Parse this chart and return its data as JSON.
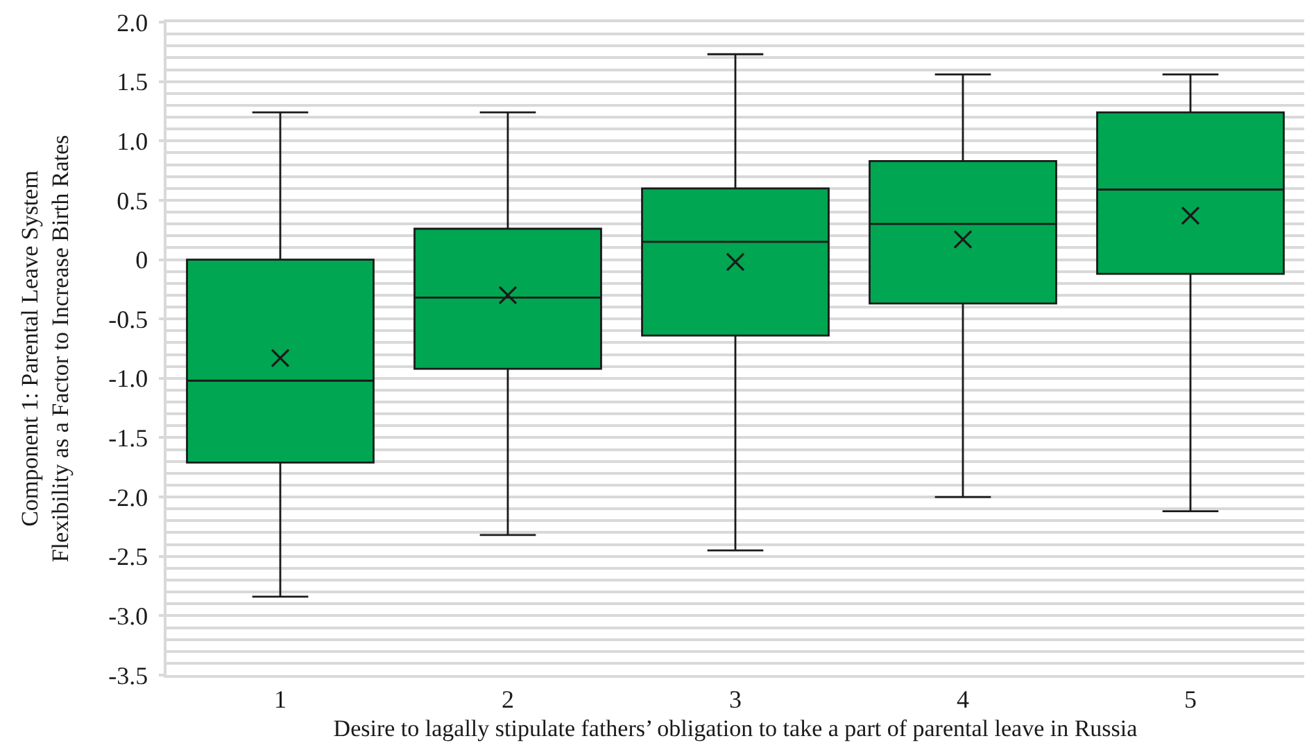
{
  "chart_data": {
    "type": "box",
    "xlabel": "Desire to lagally stipulate fathers’ obligation to take a part of parental leave in Russia",
    "ylabel": "Component 1: Parental Leave System\nFlexibility as a Factor to Increase Birth Rates",
    "categories": [
      "1",
      "2",
      "3",
      "4",
      "5"
    ],
    "series": [
      {
        "color": "#00a651",
        "boxes": [
          {
            "low": -2.84,
            "q1": -1.71,
            "median": -1.02,
            "q3": 0.0,
            "high": 1.24,
            "mean": -0.83
          },
          {
            "low": -2.32,
            "q1": -0.92,
            "median": -0.32,
            "q3": 0.26,
            "high": 1.24,
            "mean": -0.3
          },
          {
            "low": -2.45,
            "q1": -0.64,
            "median": 0.15,
            "q3": 0.6,
            "high": 1.73,
            "mean": -0.02
          },
          {
            "low": -2.0,
            "q1": -0.37,
            "median": 0.3,
            "q3": 0.83,
            "high": 1.56,
            "mean": 0.17
          },
          {
            "low": -2.12,
            "q1": -0.12,
            "median": 0.59,
            "q3": 1.24,
            "high": 1.56,
            "mean": 0.37
          }
        ]
      }
    ],
    "ylim": [
      -3.5,
      2.0
    ],
    "yticks": [
      -3.5,
      {
        "value": -3.4,
        "label": null
      },
      {
        "value": -3.3,
        "label": null
      },
      {
        "value": -3.2,
        "label": null
      },
      {
        "value": -3.1,
        "label": null
      },
      {
        "value": -3.0,
        "label": "-3.0"
      },
      {
        "value": -2.9,
        "label": null
      },
      {
        "value": -2.8,
        "label": null
      },
      {
        "value": -2.7,
        "label": null
      },
      {
        "value": -2.6,
        "label": null
      },
      -2.5,
      {
        "value": -2.4,
        "label": null
      },
      {
        "value": -2.3,
        "label": null
      },
      {
        "value": -2.2,
        "label": null
      },
      {
        "value": -2.1,
        "label": null
      },
      {
        "value": -2.0,
        "label": "-2.0"
      },
      {
        "value": -1.9,
        "label": null
      },
      {
        "value": -1.8,
        "label": null
      },
      {
        "value": -1.7,
        "label": null
      },
      {
        "value": -1.6,
        "label": null
      },
      -1.5,
      {
        "value": -1.4,
        "label": null
      },
      {
        "value": -1.3,
        "label": null
      },
      {
        "value": -1.2,
        "label": null
      },
      {
        "value": -1.1,
        "label": null
      },
      {
        "value": -1.0,
        "label": "-1.0"
      },
      {
        "value": -0.9,
        "label": null
      },
      {
        "value": -0.8,
        "label": null
      },
      {
        "value": -0.7,
        "label": null
      },
      {
        "value": -0.6,
        "label": null
      },
      -0.5,
      {
        "value": -0.4,
        "label": null
      },
      {
        "value": -0.3,
        "label": null
      },
      {
        "value": -0.2,
        "label": null
      },
      {
        "value": -0.1,
        "label": null
      },
      0,
      {
        "value": 0.1,
        "label": null
      },
      {
        "value": 0.2,
        "label": null
      },
      {
        "value": 0.3,
        "label": null
      },
      {
        "value": 0.4,
        "label": null
      },
      0.5,
      {
        "value": 0.6,
        "label": null
      },
      {
        "value": 0.7,
        "label": null
      },
      {
        "value": 0.8,
        "label": null
      },
      {
        "value": 0.9,
        "label": null
      },
      {
        "value": 1.0,
        "label": "1.0"
      },
      {
        "value": 1.1,
        "label": null
      },
      {
        "value": 1.2,
        "label": null
      },
      {
        "value": 1.3,
        "label": null
      },
      {
        "value": 1.4,
        "label": null
      },
      1.5,
      {
        "value": 1.6,
        "label": null
      },
      {
        "value": 1.7,
        "label": null
      },
      {
        "value": 1.8,
        "label": null
      },
      {
        "value": 1.9,
        "label": null
      },
      {
        "value": 2.0,
        "label": "2.0"
      }
    ],
    "grid": "y"
  }
}
